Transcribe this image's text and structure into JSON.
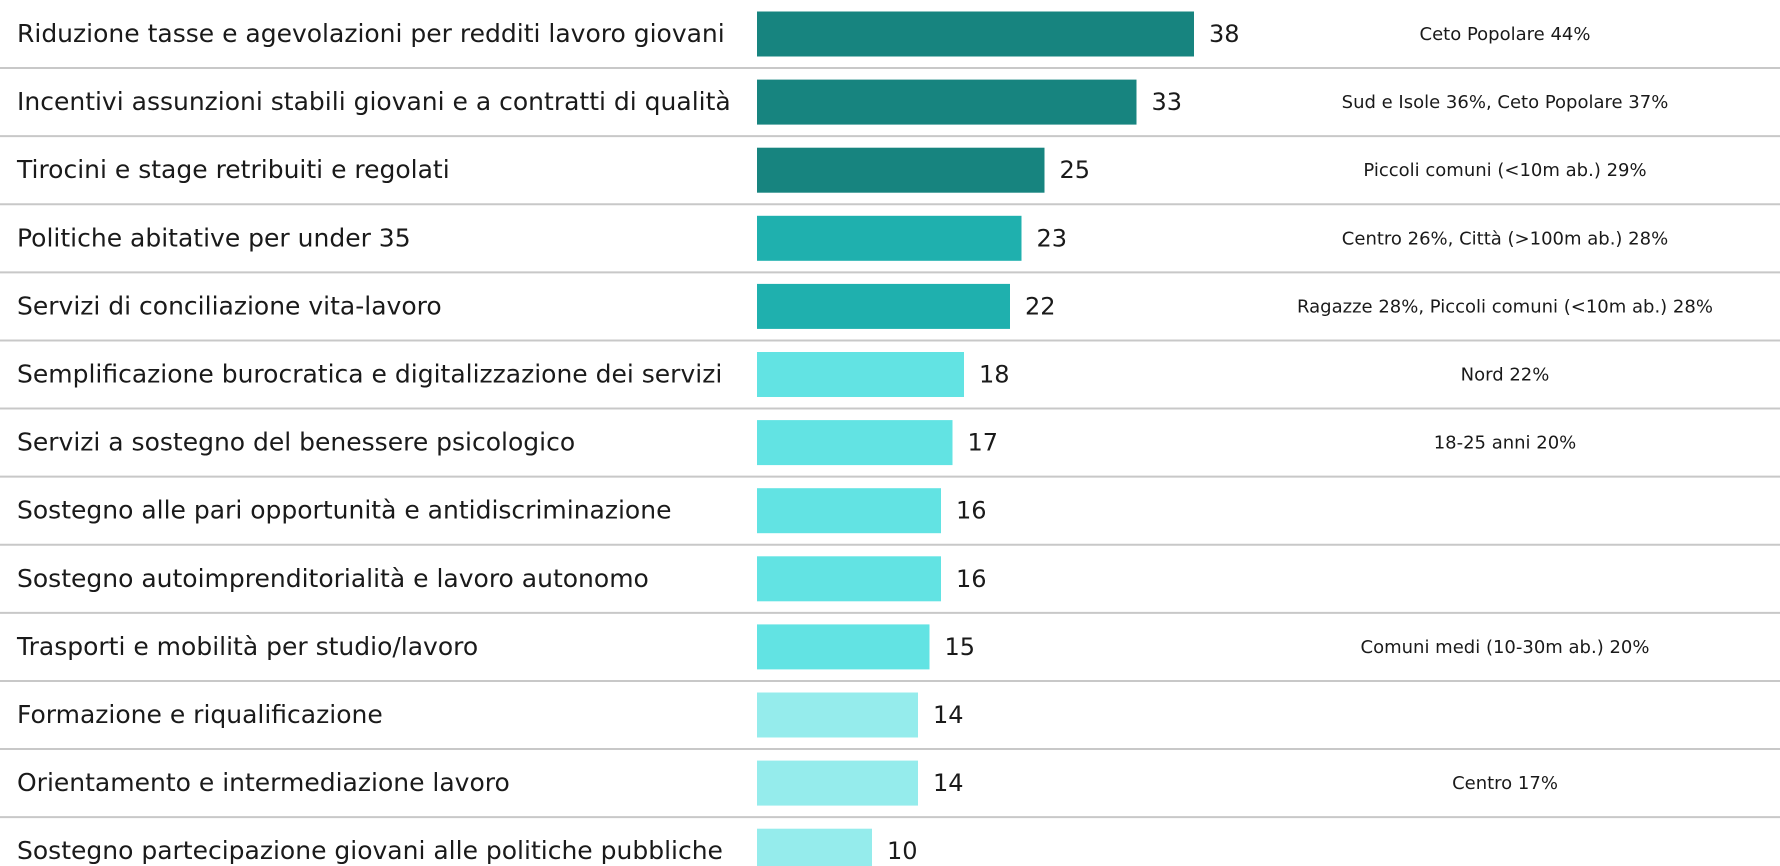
{
  "chart_data": {
    "type": "hbar",
    "categories": [
      "Riduzione tasse e agevolazioni per redditi lavoro giovani",
      "Incentivi assunzioni stabili giovani e a contratti di qualità",
      "Tirocini e stage retribuiti e regolati",
      "Politiche abitative per under 35",
      "Servizi di conciliazione vita-lavoro",
      "Semplificazione burocratica e digitalizzazione dei servizi",
      "Servizi a sostegno del benessere psicologico",
      "Sostegno alle pari opportunità e antidiscriminazione",
      "Sostegno autoimprenditorialità e lavoro autonomo",
      "Trasporti e mobilità per studio/lavoro",
      "Formazione e riqualificazione",
      "Orientamento e intermediazione lavoro",
      "Sostegno partecipazione giovani alle politiche pubbliche"
    ],
    "values": [
      38,
      33,
      25,
      23,
      22,
      18,
      17,
      16,
      16,
      15,
      14,
      14,
      10
    ],
    "colors": [
      "#17847f",
      "#17847f",
      "#17847f",
      "#1fb0ae",
      "#1fb0ae",
      "#62e3e3",
      "#62e3e3",
      "#62e3e3",
      "#62e3e3",
      "#62e3e3",
      "#95ecec",
      "#95ecec",
      "#95ecec"
    ],
    "annotations": [
      "Ceto Popolare 44%",
      "Sud e Isole 36%, Ceto Popolare 37%",
      "Piccoli comuni (<10m ab.) 29%",
      "Centro 26%, Città (>100m ab.) 28%",
      "Ragazze 28%, Piccoli comuni (<10m ab.) 28%",
      "Nord 22%",
      "18-25 anni 20%",
      null,
      null,
      "Comuni medi (10-30m ab.) 20%",
      null,
      "Centro 17%",
      null
    ],
    "xlim": [
      0,
      80
    ]
  }
}
